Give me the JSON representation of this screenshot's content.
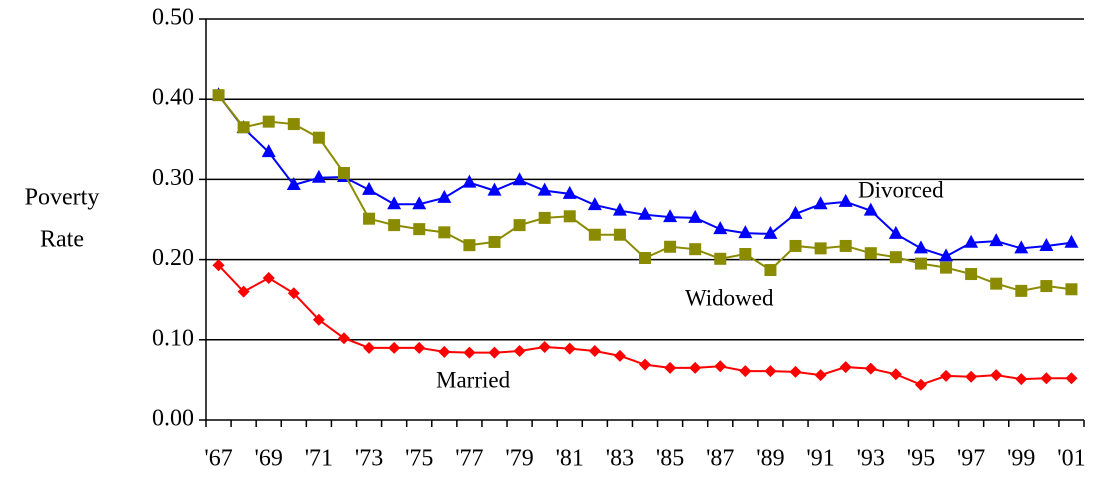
{
  "chart_data": {
    "type": "line",
    "ylabel": [
      "Poverty",
      "Rate"
    ],
    "categories": [
      "'67",
      null,
      "'69",
      null,
      "'71",
      null,
      "'73",
      null,
      "'75",
      null,
      "'77",
      null,
      "'79",
      null,
      "'81",
      null,
      "'83",
      null,
      "'85",
      null,
      "'87",
      null,
      "'89",
      null,
      "'91",
      null,
      "'93",
      null,
      "'95",
      null,
      "'97",
      null,
      "'99",
      null,
      "'01"
    ],
    "ylim": [
      0,
      0.5
    ],
    "yticks": [
      {
        "value": 0,
        "label": "0.00"
      },
      {
        "value": 0.1,
        "label": "0.10"
      },
      {
        "value": 0.2,
        "label": "0.20"
      },
      {
        "value": 0.3,
        "label": "0.30"
      },
      {
        "value": 0.4,
        "label": "0.40"
      },
      {
        "value": 0.5,
        "label": "0.50"
      }
    ],
    "grid": true,
    "series": [
      {
        "name": "Divorced",
        "color": "#0000ff",
        "marker": "triangle",
        "values": [
          0.405,
          0.364,
          0.334,
          0.293,
          0.302,
          0.303,
          0.287,
          0.269,
          0.269,
          0.277,
          0.296,
          0.286,
          0.299,
          0.286,
          0.282,
          0.268,
          0.261,
          0.256,
          0.253,
          0.252,
          0.238,
          0.233,
          0.232,
          0.257,
          0.269,
          0.272,
          0.261,
          0.232,
          0.214,
          0.204,
          0.221,
          0.223,
          0.214,
          0.217,
          0.221
        ]
      },
      {
        "name": "Widowed",
        "color": "#8b8b00",
        "marker": "square",
        "values": [
          0.405,
          0.365,
          0.372,
          0.369,
          0.352,
          0.308,
          0.251,
          0.243,
          0.238,
          0.234,
          0.218,
          0.222,
          0.243,
          0.252,
          0.254,
          0.231,
          0.231,
          0.202,
          0.216,
          0.213,
          0.201,
          0.207,
          0.187,
          0.217,
          0.214,
          0.217,
          0.208,
          0.203,
          0.195,
          0.19,
          0.182,
          0.17,
          0.161,
          0.167,
          0.163
        ]
      },
      {
        "name": "Married",
        "color": "#ff0000",
        "marker": "diamond",
        "values": [
          0.193,
          0.16,
          0.177,
          0.158,
          0.125,
          0.102,
          0.09,
          0.09,
          0.09,
          0.085,
          0.084,
          0.084,
          0.086,
          0.091,
          0.089,
          0.086,
          0.08,
          0.069,
          0.065,
          0.065,
          0.067,
          0.061,
          0.061,
          0.06,
          0.056,
          0.066,
          0.064,
          0.057,
          0.044,
          0.055,
          0.054,
          0.056,
          0.051,
          0.052,
          0.052
        ]
      }
    ]
  }
}
